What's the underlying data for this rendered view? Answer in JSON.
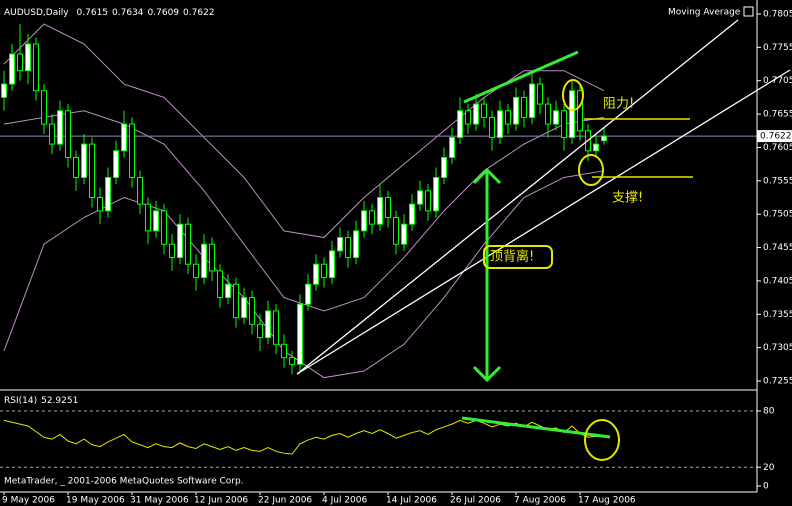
{
  "chart_data": {
    "type": "candlestick",
    "title": "AUDUSD,Daily",
    "indicator": "Moving Average",
    "footer": "MetaTrader, _ 2001-2006 MetaQuotes Software Corp.",
    "categories": [
      "9 May 2006",
      null,
      null,
      null,
      null,
      null,
      null,
      null,
      "19 May 2006",
      null,
      null,
      null,
      null,
      null,
      null,
      null,
      "31 May 2006",
      null,
      null,
      null,
      null,
      null,
      null,
      null,
      "12 Jun 2006",
      null,
      null,
      null,
      null,
      null,
      null,
      null,
      "22 Jun 2006",
      null,
      null,
      null,
      null,
      null,
      null,
      null,
      "4 Jul 2006",
      null,
      null,
      null,
      null,
      null,
      null,
      null,
      "14 Jul 2006",
      null,
      null,
      null,
      null,
      null,
      null,
      null,
      "26 Jul 2006",
      null,
      null,
      null,
      null,
      null,
      null,
      null,
      "7 Aug 2006",
      null,
      null,
      null,
      null,
      null,
      null,
      null,
      "17 Aug 2006",
      null,
      null,
      null
    ],
    "open": [
      0.768,
      0.77,
      0.7745,
      0.772,
      0.776,
      0.769,
      0.764,
      0.761,
      0.766,
      0.759,
      0.756,
      0.761,
      0.753,
      0.751,
      0.756,
      0.76,
      0.764,
      0.756,
      0.752,
      0.748,
      0.751,
      0.746,
      0.744,
      0.749,
      0.743,
      0.741,
      0.746,
      0.742,
      0.738,
      0.74,
      0.735,
      0.738,
      0.734,
      0.732,
      0.736,
      0.731,
      0.729,
      0.728,
      0.737,
      0.74,
      0.743,
      0.741,
      0.745,
      0.747,
      0.744,
      0.748,
      0.751,
      0.749,
      0.753,
      0.75,
      0.746,
      0.749,
      0.752,
      0.754,
      0.751,
      0.756,
      0.759,
      0.762,
      0.766,
      0.764,
      0.767,
      0.765,
      0.762,
      0.766,
      0.764,
      0.768,
      0.765,
      0.77,
      0.767,
      0.764,
      0.766,
      0.762,
      0.769,
      0.763,
      0.76,
      0.7615
    ],
    "high": [
      0.772,
      0.776,
      0.779,
      0.7775,
      0.777,
      0.77,
      0.7655,
      0.7675,
      0.767,
      0.76,
      0.7625,
      0.762,
      0.7545,
      0.7575,
      0.7615,
      0.766,
      0.765,
      0.757,
      0.753,
      0.7525,
      0.752,
      0.7475,
      0.7505,
      0.75,
      0.7445,
      0.7475,
      0.747,
      0.743,
      0.7415,
      0.741,
      0.7395,
      0.739,
      0.7355,
      0.7375,
      0.737,
      0.7325,
      0.73,
      0.7385,
      0.7415,
      0.7445,
      0.744,
      0.7465,
      0.7485,
      0.748,
      0.7495,
      0.7525,
      0.752,
      0.755,
      0.754,
      0.751,
      0.7505,
      0.7535,
      0.7555,
      0.755,
      0.7575,
      0.7605,
      0.7635,
      0.768,
      0.767,
      0.7685,
      0.768,
      0.766,
      0.7675,
      0.767,
      0.7695,
      0.769,
      0.772,
      0.771,
      0.768,
      0.7675,
      0.767,
      0.7705,
      0.77,
      0.764,
      0.7625,
      0.7634
    ],
    "low": [
      0.766,
      0.769,
      0.7705,
      0.77,
      0.7675,
      0.7625,
      0.7595,
      0.76,
      0.7575,
      0.754,
      0.755,
      0.7515,
      0.749,
      0.75,
      0.755,
      0.759,
      0.7545,
      0.7505,
      0.746,
      0.747,
      0.7445,
      0.742,
      0.743,
      0.7415,
      0.739,
      0.74,
      0.7405,
      0.7365,
      0.737,
      0.7335,
      0.734,
      0.7325,
      0.73,
      0.731,
      0.7295,
      0.7275,
      0.7265,
      0.727,
      0.736,
      0.739,
      0.7395,
      0.74,
      0.744,
      0.7425,
      0.743,
      0.747,
      0.7475,
      0.748,
      0.7485,
      0.7445,
      0.745,
      0.748,
      0.751,
      0.7495,
      0.75,
      0.755,
      0.758,
      0.761,
      0.7625,
      0.763,
      0.7635,
      0.76,
      0.761,
      0.7625,
      0.763,
      0.7635,
      0.764,
      0.7655,
      0.762,
      0.763,
      0.76,
      0.761,
      0.7615,
      0.7585,
      0.759,
      0.7609
    ],
    "close": [
      0.77,
      0.7745,
      0.772,
      0.776,
      0.769,
      0.764,
      0.761,
      0.766,
      0.759,
      0.756,
      0.761,
      0.753,
      0.751,
      0.756,
      0.76,
      0.764,
      0.756,
      0.752,
      0.748,
      0.751,
      0.746,
      0.744,
      0.749,
      0.743,
      0.741,
      0.746,
      0.742,
      0.738,
      0.74,
      0.735,
      0.738,
      0.734,
      0.732,
      0.736,
      0.731,
      0.729,
      0.728,
      0.737,
      0.74,
      0.743,
      0.741,
      0.745,
      0.747,
      0.744,
      0.748,
      0.751,
      0.749,
      0.753,
      0.75,
      0.746,
      0.749,
      0.752,
      0.754,
      0.751,
      0.756,
      0.759,
      0.762,
      0.766,
      0.764,
      0.767,
      0.765,
      0.762,
      0.766,
      0.764,
      0.768,
      0.765,
      0.77,
      0.767,
      0.764,
      0.766,
      0.762,
      0.769,
      0.763,
      0.76,
      0.761,
      0.7622
    ],
    "candle_color": "#00ff00",
    "up_fill": "#ffffff",
    "down_fill": "#000000",
    "band_color": "#c08cc8",
    "price_line_color": "#8c8cb0",
    "bands": [
      {
        "x": [
          0,
          5,
          10,
          15,
          20,
          25,
          30,
          35,
          40,
          45,
          50,
          55,
          60,
          65,
          70,
          75
        ],
        "values": [
          0.773,
          0.779,
          0.776,
          0.77,
          0.768,
          0.762,
          0.756,
          0.748,
          0.747,
          0.753,
          0.758,
          0.763,
          0.768,
          0.772,
          0.772,
          0.769
        ]
      },
      {
        "x": [
          0,
          5,
          10,
          15,
          20,
          25,
          30,
          35,
          40,
          45,
          50,
          55,
          60,
          65,
          70,
          75
        ],
        "values": [
          0.764,
          0.765,
          0.766,
          0.764,
          0.761,
          0.754,
          0.746,
          0.738,
          0.736,
          0.738,
          0.744,
          0.751,
          0.757,
          0.761,
          0.764,
          0.765
        ]
      },
      {
        "x": [
          0,
          5,
          10,
          15,
          20,
          25,
          30,
          35,
          40,
          45,
          50,
          55,
          60,
          65,
          70,
          75
        ],
        "values": [
          0.73,
          0.746,
          0.75,
          0.753,
          0.751,
          0.744,
          0.738,
          0.73,
          0.726,
          0.727,
          0.731,
          0.738,
          0.746,
          0.753,
          0.756,
          0.757
        ]
      }
    ],
    "ylim": [
      0.7255,
      0.7805
    ],
    "yticks": [
      0.7805,
      0.7755,
      0.7705,
      0.7655,
      0.7605,
      0.7555,
      0.7505,
      0.7455,
      0.7405,
      0.7355,
      0.7305,
      0.7255
    ],
    "rsi": {
      "title": "RSI(14)",
      "color": "#e6e600",
      "values": [
        70,
        68,
        66,
        64,
        58,
        52,
        50,
        55,
        48,
        45,
        50,
        44,
        42,
        47,
        51,
        55,
        47,
        44,
        41,
        45,
        42,
        41,
        46,
        42,
        40,
        45,
        42,
        39,
        42,
        38,
        41,
        38,
        37,
        41,
        37,
        35,
        34,
        45,
        49,
        52,
        50,
        54,
        56,
        52,
        56,
        59,
        56,
        60,
        56,
        51,
        54,
        57,
        59,
        55,
        60,
        63,
        66,
        70,
        67,
        70,
        67,
        63,
        66,
        64,
        67,
        63,
        68,
        64,
        60,
        62,
        57,
        64,
        56,
        52,
        53,
        52.9251
      ],
      "ylim": [
        0,
        100
      ],
      "yticks": [
        0,
        20,
        80
      ],
      "levels": [
        20,
        80
      ]
    },
    "annotations": {
      "resistance": "阻力!",
      "support": "支撑!",
      "divergence": "顶背离!"
    }
  }
}
